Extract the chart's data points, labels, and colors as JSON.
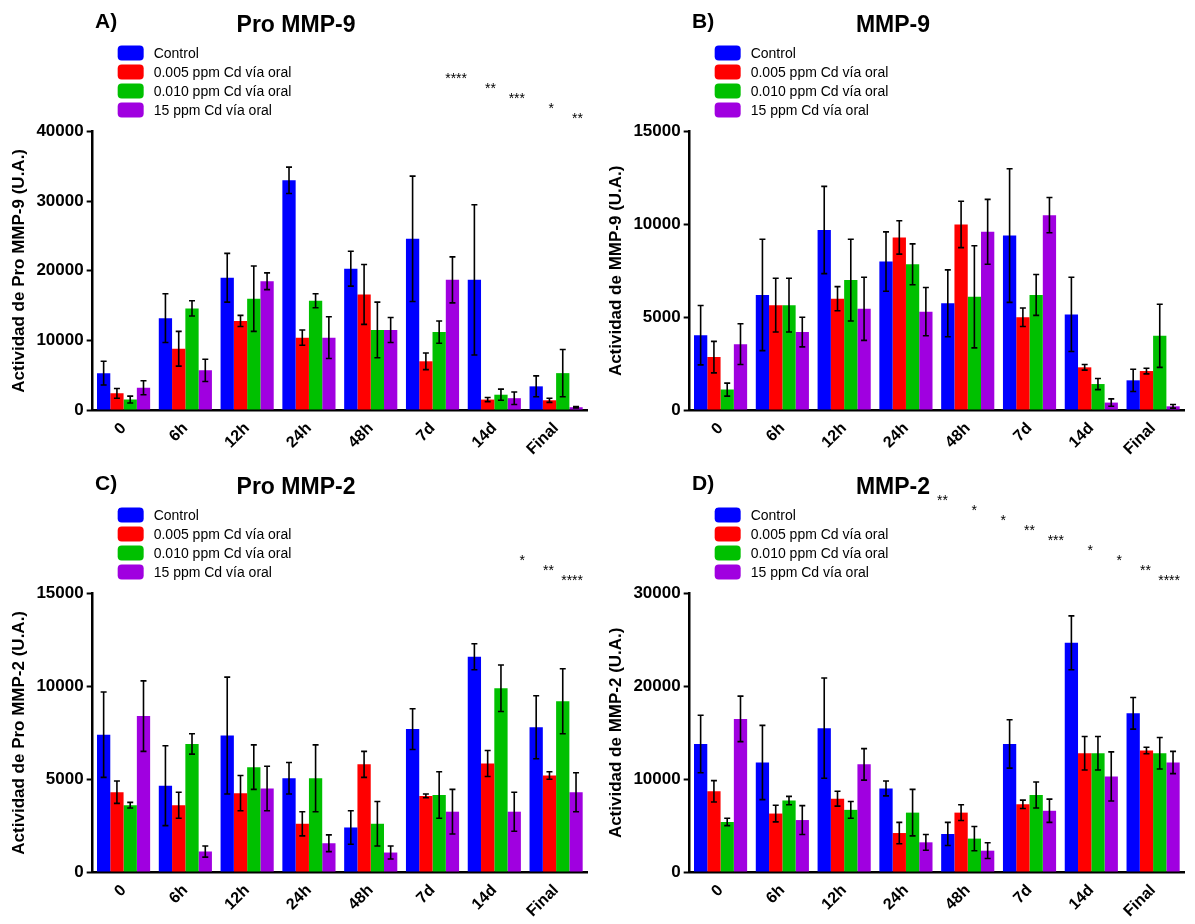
{
  "chart_data": [
    {
      "type": "bar",
      "title": "Pro MMP-9",
      "subtitle": "A)",
      "ylabel": "Actividad de Pro MMP-9 (U.A.)",
      "categories": [
        "0",
        "6h",
        "12h",
        "24h",
        "48h",
        "7d",
        "14d",
        "Final"
      ],
      "series": [
        {
          "name": "Control",
          "color": "#0000ff",
          "values": [
            5300,
            13200,
            19000,
            33000,
            20300,
            24600,
            18700,
            3400
          ],
          "errors": [
            1700,
            3500,
            3500,
            1900,
            2500,
            9000,
            10800,
            1500
          ]
        },
        {
          "name": "0.005 ppm Cd vía oral",
          "color": "#ff0000",
          "values": [
            2400,
            8800,
            12800,
            10400,
            16600,
            7000,
            1500,
            1400
          ],
          "errors": [
            700,
            2500,
            800,
            1100,
            4300,
            1200,
            300,
            300
          ]
        },
        {
          "name": "0.010 ppm Cd vía oral",
          "color": "#00c000",
          "values": [
            1500,
            14600,
            16000,
            15700,
            11500,
            11200,
            2200,
            5300
          ],
          "errors": [
            500,
            1100,
            4700,
            1000,
            4000,
            1600,
            800,
            3400
          ]
        },
        {
          "name": "15 ppm Cd vía oral",
          "color": "#a000e0",
          "values": [
            3200,
            5700,
            18500,
            10400,
            11500,
            18700,
            1700,
            400
          ],
          "errors": [
            1000,
            1600,
            1200,
            3000,
            1800,
            3300,
            900,
            100
          ]
        }
      ],
      "ylim": [
        0,
        40000
      ],
      "yticks": [
        0,
        10000,
        20000,
        30000,
        40000
      ],
      "grid": false,
      "legend": "top left",
      "annotations": [
        "****",
        "**",
        "***",
        "*",
        "**"
      ]
    },
    {
      "type": "bar",
      "title": "MMP-9",
      "subtitle": "B)",
      "ylabel": "Actividad de MMP-9 (U.A.)",
      "categories": [
        "0",
        "6h",
        "12h",
        "24h",
        "48h",
        "7d",
        "14d",
        "Final"
      ],
      "series": [
        {
          "name": "Control",
          "color": "#0000ff",
          "values": [
            4030,
            6200,
            9700,
            8000,
            5750,
            9400,
            5150,
            1600
          ],
          "errors": [
            1600,
            3000,
            2350,
            1600,
            1800,
            3600,
            2000,
            600
          ]
        },
        {
          "name": "0.005 ppm Cd vía oral",
          "color": "#ff0000",
          "values": [
            2850,
            5650,
            6000,
            9300,
            10000,
            5000,
            2300,
            2100
          ],
          "errors": [
            850,
            1450,
            650,
            900,
            1250,
            500,
            150,
            150
          ]
        },
        {
          "name": "0.010 ppm Cd vía oral",
          "color": "#00c000",
          "values": [
            1100,
            5650,
            7000,
            7850,
            6100,
            6200,
            1400,
            4000
          ],
          "errors": [
            350,
            1450,
            2200,
            1100,
            2750,
            1100,
            300,
            1700
          ]
        },
        {
          "name": "15 ppm Cd vía oral",
          "color": "#a000e0",
          "values": [
            3550,
            4200,
            5450,
            5300,
            9600,
            10500,
            400,
            200
          ],
          "errors": [
            1100,
            800,
            1700,
            1300,
            1750,
            950,
            200,
            100
          ]
        }
      ],
      "ylim": [
        0,
        15000
      ],
      "yticks": [
        0,
        5000,
        10000,
        15000
      ],
      "grid": false,
      "legend": "top left"
    },
    {
      "type": "bar",
      "title": "Pro MMP-2",
      "subtitle": "C)",
      "ylabel": "Actividad de Pro MMP-2 (U.A.)",
      "categories": [
        "0",
        "6h",
        "12h",
        "24h",
        "48h",
        "7d",
        "14d",
        "Final"
      ],
      "series": [
        {
          "name": "Control",
          "color": "#0000ff",
          "values": [
            7400,
            4650,
            7350,
            5050,
            2400,
            7700,
            11600,
            7800
          ],
          "errors": [
            2300,
            2150,
            3150,
            850,
            900,
            1100,
            700,
            1700
          ]
        },
        {
          "name": "0.005 ppm Cd vía oral",
          "color": "#ff0000",
          "values": [
            4300,
            3600,
            4250,
            2600,
            5800,
            4100,
            5850,
            5200
          ],
          "errors": [
            600,
            700,
            950,
            650,
            700,
            100,
            700,
            200
          ]
        },
        {
          "name": "0.010 ppm Cd vía oral",
          "color": "#00c000",
          "values": [
            3600,
            6900,
            5650,
            5050,
            2600,
            4150,
            9900,
            9200
          ],
          "errors": [
            150,
            550,
            1200,
            1800,
            1200,
            1250,
            1250,
            1750
          ]
        },
        {
          "name": "15 ppm Cd vía oral",
          "color": "#a000e0",
          "values": [
            8400,
            1100,
            4500,
            1550,
            1050,
            3250,
            3250,
            4300
          ],
          "errors": [
            1900,
            300,
            1200,
            450,
            350,
            1200,
            1050,
            1050
          ]
        }
      ],
      "ylim": [
        0,
        15000
      ],
      "yticks": [
        0,
        5000,
        10000,
        15000
      ],
      "grid": false,
      "legend": "top left",
      "annotations": [
        "*",
        "**",
        "****"
      ]
    },
    {
      "type": "bar",
      "title": "MMP-2",
      "subtitle": "D)",
      "ylabel": "Actividad de MMP-2 (U.A.)",
      "categories": [
        "0",
        "6h",
        "12h",
        "24h",
        "48h",
        "7d",
        "14d",
        "Final"
      ],
      "series": [
        {
          "name": "Control",
          "color": "#0000ff",
          "values": [
            13800,
            11800,
            15500,
            9000,
            4100,
            13800,
            24700,
            17100
          ],
          "errors": [
            3100,
            4000,
            5400,
            800,
            1250,
            2600,
            2900,
            1700
          ]
        },
        {
          "name": "0.005 ppm Cd vía oral",
          "color": "#ff0000",
          "values": [
            8700,
            6300,
            7900,
            4200,
            6400,
            7300,
            12800,
            13100
          ],
          "errors": [
            1150,
            900,
            800,
            1150,
            850,
            450,
            1800,
            350
          ]
        },
        {
          "name": "0.010 ppm Cd vía oral",
          "color": "#00c000",
          "values": [
            5400,
            7700,
            6700,
            6400,
            3600,
            8300,
            12800,
            12800
          ],
          "errors": [
            400,
            450,
            900,
            2500,
            1300,
            1400,
            1800,
            1700
          ]
        },
        {
          "name": "15 ppm Cd vía oral",
          "color": "#a000e0",
          "values": [
            16500,
            5600,
            11600,
            3200,
            2300,
            6600,
            10300,
            11800
          ],
          "errors": [
            2450,
            1550,
            1700,
            850,
            850,
            1250,
            2650,
            1200
          ]
        }
      ],
      "ylim": [
        0,
        30000
      ],
      "yticks": [
        0,
        10000,
        20000,
        30000
      ],
      "grid": false,
      "legend": "top left",
      "annotations": [
        "**",
        "*",
        "*",
        "**",
        "***",
        "*",
        "*",
        "**",
        "****"
      ]
    }
  ]
}
